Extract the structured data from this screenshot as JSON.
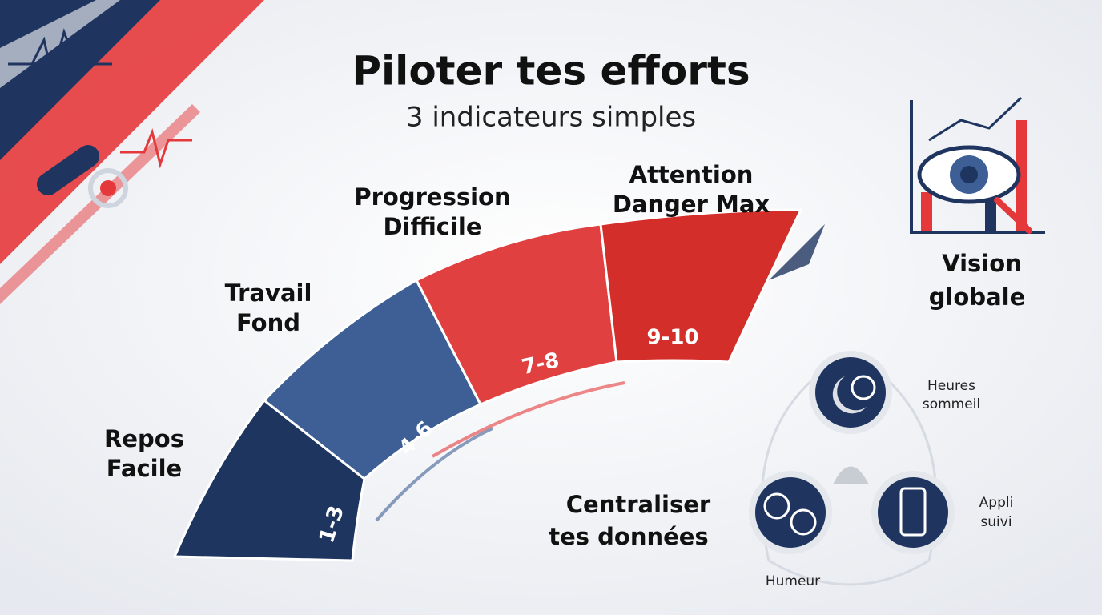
{
  "header": {
    "title": "Piloter tes efforts",
    "subtitle": "3 indicateurs simples"
  },
  "zones": [
    {
      "label": [
        "Repos",
        "Facile"
      ],
      "range": "1-3"
    },
    {
      "label": [
        "Travail",
        "Fond"
      ],
      "range": "4-6"
    },
    {
      "label": [
        "Progression",
        "Difficile"
      ],
      "range": "7-8"
    },
    {
      "label": [
        "Attention",
        "Danger Max"
      ],
      "range": "9-10"
    }
  ],
  "vision": {
    "label": [
      "Vision",
      "globale"
    ]
  },
  "centralize": {
    "label": [
      "Centraliser",
      "tes données"
    ],
    "indicators": [
      {
        "label": [
          "Heures",
          "sommeil"
        ]
      },
      {
        "label": [
          "Appli",
          "suivi"
        ]
      },
      {
        "label": [
          "Humeur"
        ]
      }
    ]
  }
}
